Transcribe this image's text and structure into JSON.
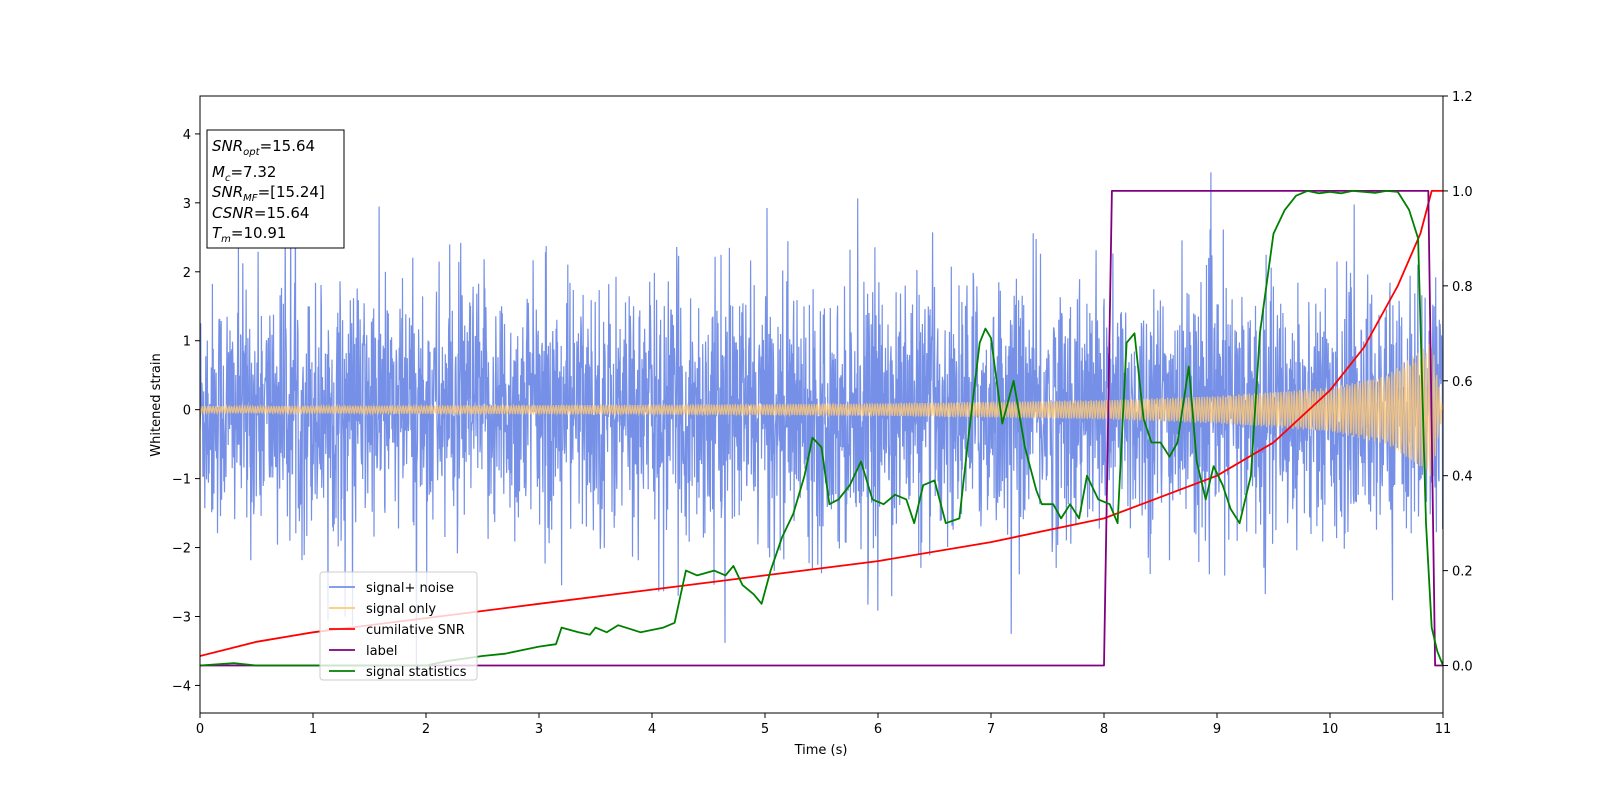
{
  "chart_data": {
    "type": "line",
    "xlabel": "Time (s)",
    "ylabel": "Whitened strain",
    "xlim": [
      0,
      11
    ],
    "ylim": [
      -4.4,
      4.55
    ],
    "y2lim": [
      -0.1,
      1.2
    ],
    "xticks": [
      "0",
      "1",
      "2",
      "3",
      "4",
      "5",
      "6",
      "7",
      "8",
      "9",
      "10",
      "11"
    ],
    "yticks": [
      "−4",
      "−3",
      "−2",
      "−1",
      "0",
      "1",
      "2",
      "3",
      "4"
    ],
    "y2ticks": [
      "0.0",
      "0.2",
      "0.4",
      "0.6",
      "0.8",
      "1.0",
      "1.2"
    ],
    "grid": false,
    "legend_position": "lower-left",
    "annotation": {
      "lines": [
        {
          "label": "SNR",
          "sub": "opt",
          "value": "=15.64"
        },
        {
          "label": "M",
          "sub": "c",
          "value": "=7.32"
        },
        {
          "label": "SNR",
          "sub": "MF",
          "value": "=[15.24]"
        },
        {
          "label": "CSNR",
          "sub": "",
          "value": "=15.64"
        },
        {
          "label": "T",
          "sub": "m",
          "value": "=10.91"
        }
      ]
    },
    "series": [
      {
        "name": "signal+ noise",
        "color": "#7590e6",
        "axis": "left",
        "description_std": 0.9
      },
      {
        "name": "signal only",
        "color": "#fdc878",
        "axis": "left",
        "amplitude_envelope": {
          "x": [
            0,
            2,
            4,
            6,
            8,
            9,
            10,
            10.5,
            10.8,
            10.9,
            11
          ],
          "y": [
            0.05,
            0.06,
            0.07,
            0.09,
            0.14,
            0.2,
            0.32,
            0.5,
            0.85,
            1.0,
            0
          ]
        }
      },
      {
        "name": "cumilative SNR",
        "color": "#ff0000",
        "axis": "right",
        "x": [
          0,
          0.5,
          1,
          2,
          3,
          4,
          5,
          6,
          7,
          8,
          9,
          9.5,
          10,
          10.3,
          10.6,
          10.8,
          10.9,
          11
        ],
        "y": [
          0.02,
          0.05,
          0.07,
          0.1,
          0.13,
          0.16,
          0.19,
          0.22,
          0.26,
          0.31,
          0.4,
          0.47,
          0.58,
          0.67,
          0.8,
          0.91,
          1.0,
          1.0
        ]
      },
      {
        "name": "label",
        "color": "#800080",
        "axis": "right",
        "x": [
          0,
          8.0,
          8.07,
          10.87,
          10.93,
          11
        ],
        "y": [
          0,
          0,
          1,
          1,
          0,
          0
        ]
      },
      {
        "name": "signal statistics",
        "color": "#008000",
        "axis": "right",
        "x": [
          0,
          0.3,
          0.5,
          1,
          1.5,
          2,
          2.2,
          2.5,
          2.7,
          3.0,
          3.15,
          3.2,
          3.35,
          3.45,
          3.5,
          3.6,
          3.7,
          3.9,
          4.1,
          4.2,
          4.3,
          4.4,
          4.55,
          4.65,
          4.72,
          4.8,
          4.9,
          4.97,
          5.05,
          5.15,
          5.25,
          5.35,
          5.42,
          5.5,
          5.57,
          5.65,
          5.75,
          5.85,
          5.95,
          6.05,
          6.15,
          6.25,
          6.32,
          6.4,
          6.5,
          6.6,
          6.72,
          6.8,
          6.9,
          6.95,
          7.0,
          7.1,
          7.2,
          7.3,
          7.4,
          7.45,
          7.55,
          7.62,
          7.7,
          7.78,
          7.85,
          7.95,
          8.05,
          8.12,
          8.2,
          8.27,
          8.35,
          8.42,
          8.5,
          8.58,
          8.65,
          8.75,
          8.82,
          8.9,
          8.97,
          9.05,
          9.12,
          9.2,
          9.3,
          9.38,
          9.5,
          9.6,
          9.7,
          9.8,
          9.9,
          10.0,
          10.1,
          10.2,
          10.3,
          10.4,
          10.5,
          10.6,
          10.7,
          10.78,
          10.85,
          10.9,
          10.95,
          11.0
        ],
        "y": [
          0,
          0.005,
          0,
          0,
          0,
          0,
          0.01,
          0.02,
          0.025,
          0.04,
          0.045,
          0.08,
          0.07,
          0.065,
          0.08,
          0.07,
          0.085,
          0.07,
          0.08,
          0.09,
          0.2,
          0.19,
          0.2,
          0.19,
          0.21,
          0.17,
          0.15,
          0.13,
          0.2,
          0.27,
          0.32,
          0.4,
          0.48,
          0.46,
          0.34,
          0.35,
          0.38,
          0.43,
          0.35,
          0.34,
          0.36,
          0.35,
          0.3,
          0.38,
          0.39,
          0.3,
          0.31,
          0.48,
          0.68,
          0.71,
          0.69,
          0.51,
          0.6,
          0.46,
          0.37,
          0.34,
          0.34,
          0.31,
          0.34,
          0.31,
          0.4,
          0.35,
          0.34,
          0.3,
          0.68,
          0.7,
          0.52,
          0.47,
          0.47,
          0.44,
          0.47,
          0.63,
          0.43,
          0.35,
          0.42,
          0.38,
          0.33,
          0.3,
          0.4,
          0.7,
          0.91,
          0.96,
          0.99,
          1.0,
          0.995,
          0.998,
          0.995,
          1.0,
          0.998,
          0.996,
          1.0,
          0.998,
          0.96,
          0.9,
          0.3,
          0.08,
          0.03,
          0.0
        ]
      }
    ]
  }
}
